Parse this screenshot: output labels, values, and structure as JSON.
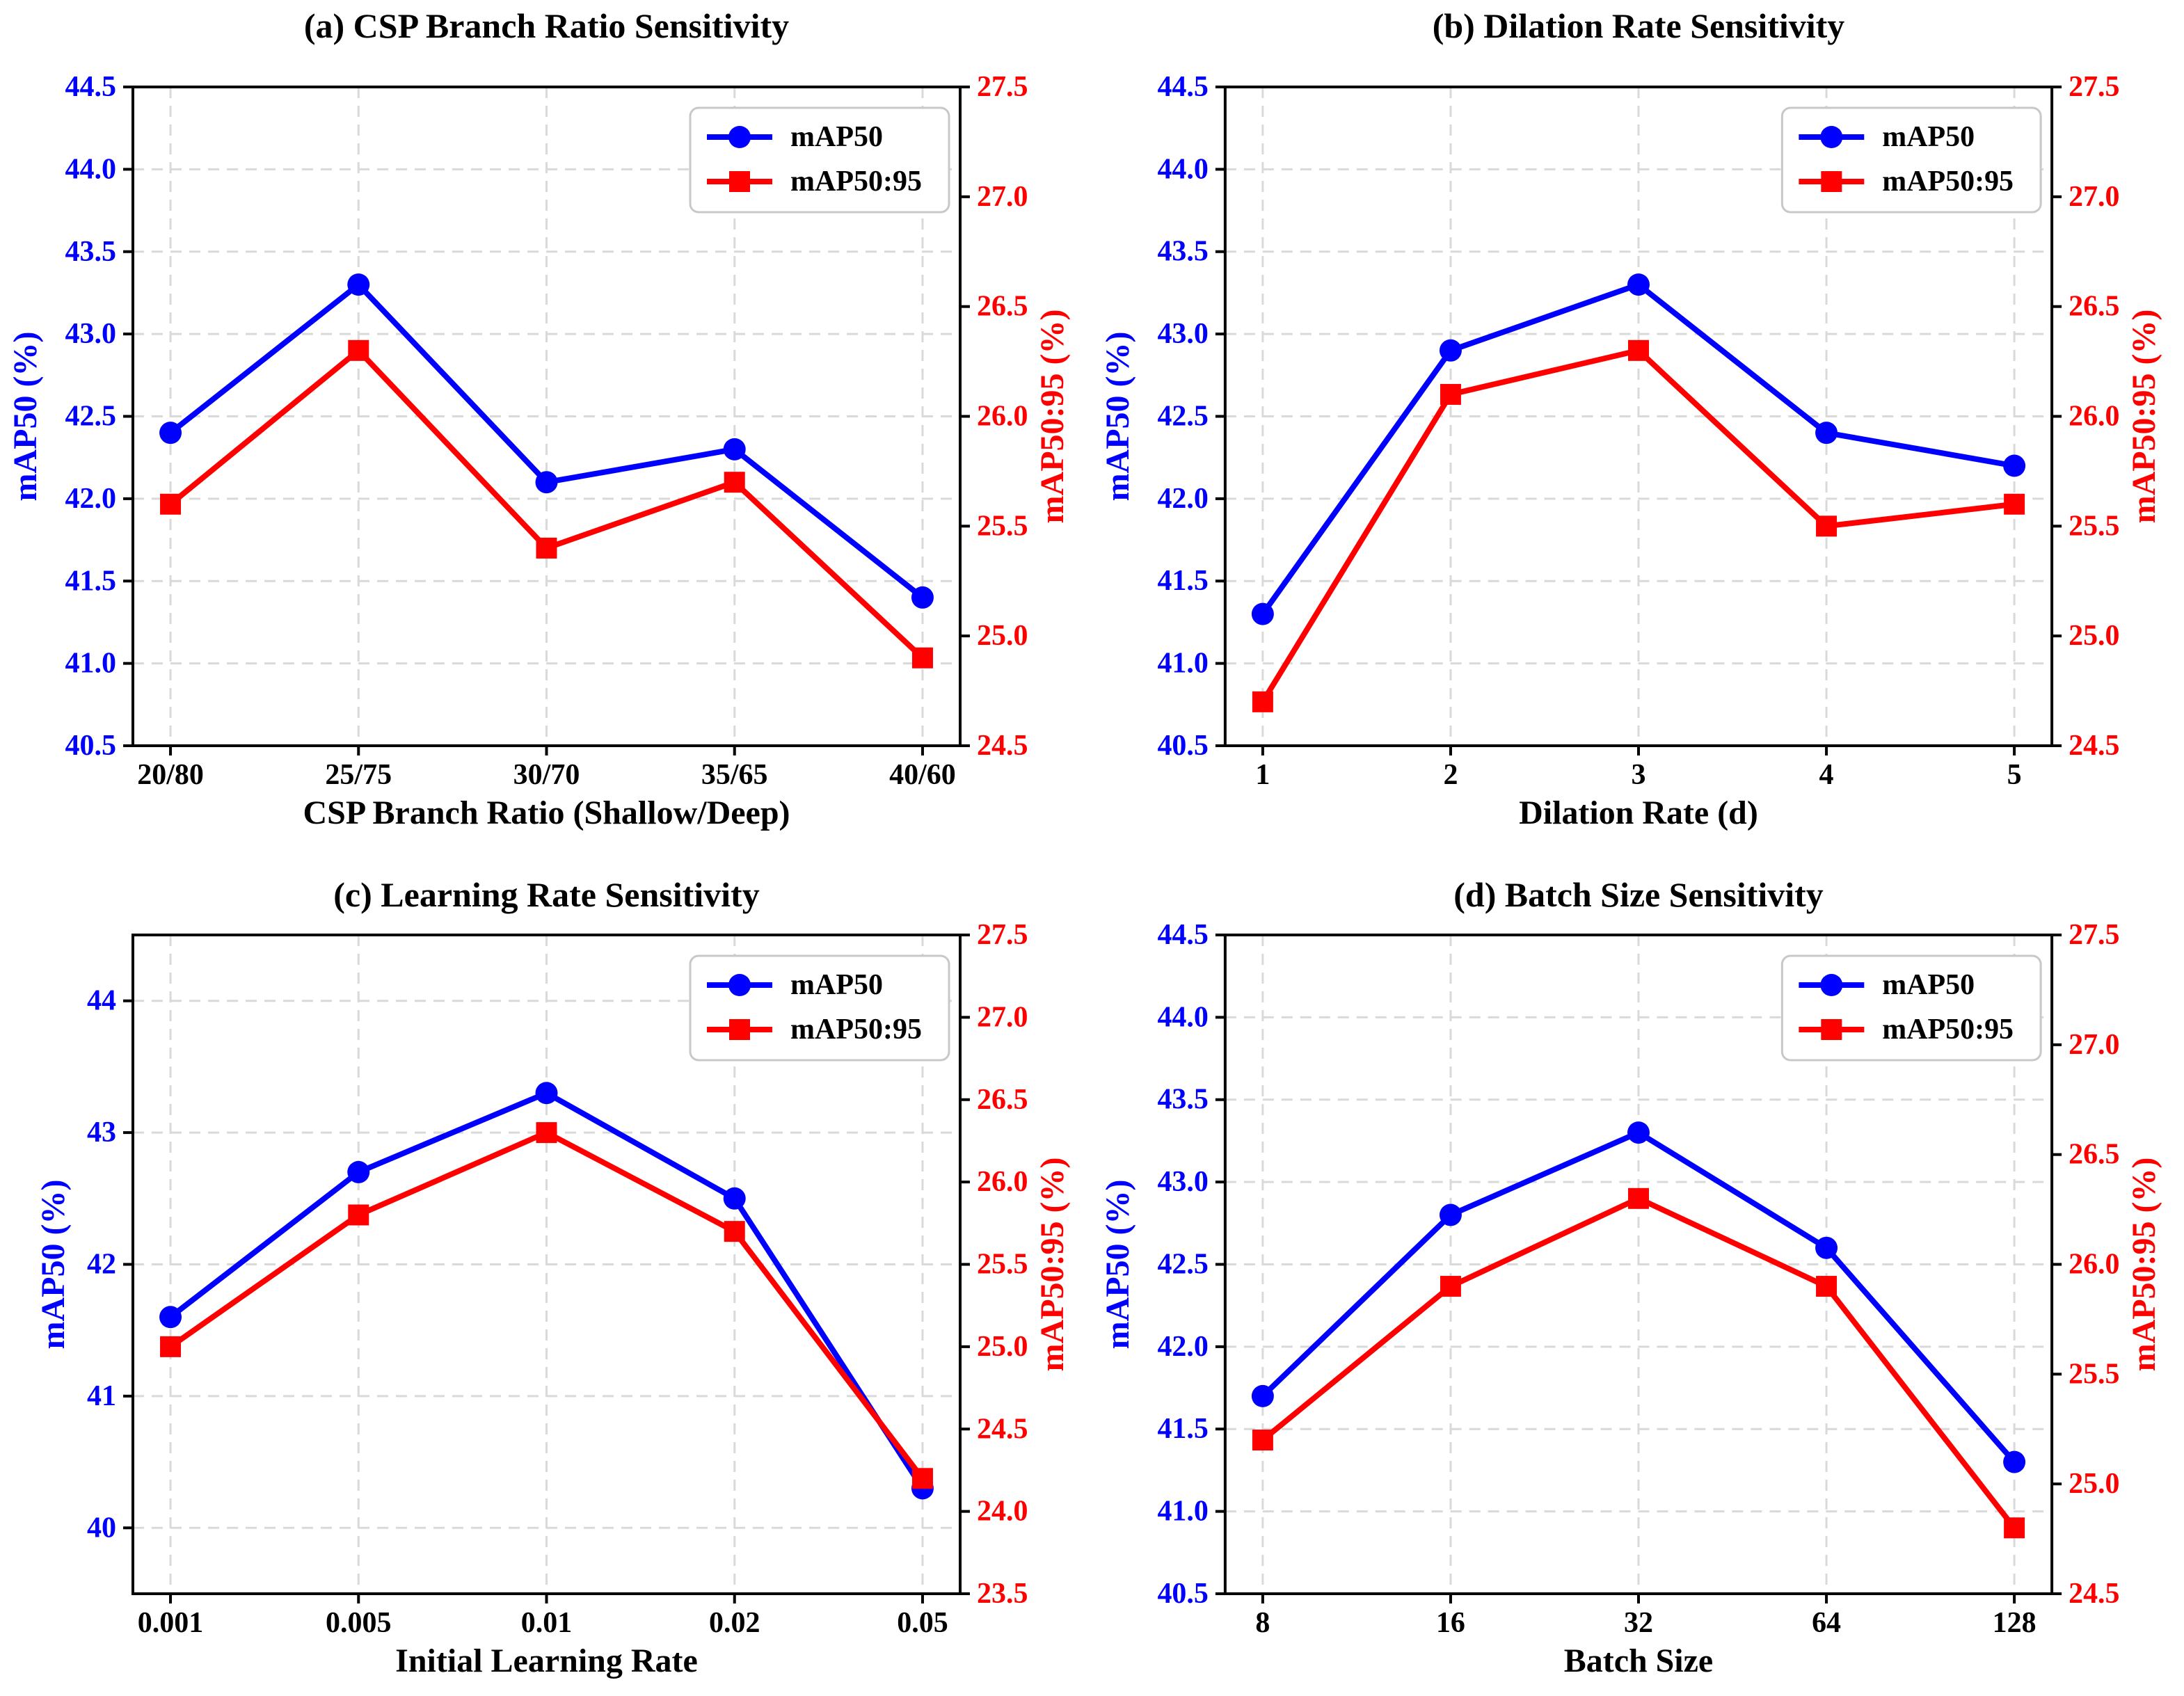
{
  "figure": {
    "background": "#ffffff",
    "grid_color": "#d9d9d9",
    "axis_color": "#000000",
    "legend_labels": [
      "mAP50",
      "mAP50:95"
    ],
    "series_colors": {
      "mAP50": "#0000ff",
      "mAP50:95": "#ff0000"
    }
  },
  "chart_data": [
    {
      "id": "a",
      "row": 0,
      "type": "line",
      "title": "(a) CSP Branch Ratio Sensitivity",
      "xlabel": "CSP Branch Ratio (Shallow/Deep)",
      "ylabel_left": "mAP50 (%)",
      "ylabel_right": "mAP50:95 (%)",
      "categories": [
        "20/80",
        "25/75",
        "30/70",
        "35/65",
        "40/60"
      ],
      "grid": true,
      "legend_position": "top-right",
      "left_axis": {
        "lim": [
          40.5,
          44.5
        ],
        "ticks": [
          40.5,
          41.0,
          41.5,
          42.0,
          42.5,
          43.0,
          43.5,
          44.0,
          44.5
        ],
        "labels": [
          "40.5",
          "41.0",
          "41.5",
          "42.0",
          "42.5",
          "43.0",
          "43.5",
          "44.0",
          "44.5"
        ]
      },
      "right_axis": {
        "lim": [
          24.5,
          27.5
        ],
        "ticks": [
          24.5,
          25.0,
          25.5,
          26.0,
          26.5,
          27.0,
          27.5
        ],
        "labels": [
          "24.5",
          "25.0",
          "25.5",
          "26.0",
          "26.5",
          "27.0",
          "27.5"
        ]
      },
      "series": [
        {
          "name": "mAP50",
          "axis": "left",
          "marker": "circle",
          "color": "#0000ff",
          "values": [
            42.4,
            43.3,
            42.1,
            42.3,
            41.4
          ]
        },
        {
          "name": "mAP50:95",
          "axis": "right",
          "marker": "square",
          "color": "#ff0000",
          "values": [
            25.6,
            26.3,
            25.4,
            25.7,
            24.9
          ]
        }
      ]
    },
    {
      "id": "b",
      "row": 0,
      "type": "line",
      "title": "(b) Dilation Rate Sensitivity",
      "xlabel": "Dilation Rate (d)",
      "ylabel_left": "mAP50 (%)",
      "ylabel_right": "mAP50:95 (%)",
      "categories": [
        "1",
        "2",
        "3",
        "4",
        "5"
      ],
      "grid": true,
      "legend_position": "top-right",
      "left_axis": {
        "lim": [
          40.5,
          44.5
        ],
        "ticks": [
          40.5,
          41.0,
          41.5,
          42.0,
          42.5,
          43.0,
          43.5,
          44.0,
          44.5
        ],
        "labels": [
          "40.5",
          "41.0",
          "41.5",
          "42.0",
          "42.5",
          "43.0",
          "43.5",
          "44.0",
          "44.5"
        ]
      },
      "right_axis": {
        "lim": [
          24.5,
          27.5
        ],
        "ticks": [
          24.5,
          25.0,
          25.5,
          26.0,
          26.5,
          27.0,
          27.5
        ],
        "labels": [
          "24.5",
          "25.0",
          "25.5",
          "26.0",
          "26.5",
          "27.0",
          "27.5"
        ]
      },
      "series": [
        {
          "name": "mAP50",
          "axis": "left",
          "marker": "circle",
          "color": "#0000ff",
          "values": [
            41.3,
            42.9,
            43.3,
            42.4,
            42.2
          ]
        },
        {
          "name": "mAP50:95",
          "axis": "right",
          "marker": "square",
          "color": "#ff0000",
          "values": [
            24.7,
            26.1,
            26.3,
            25.5,
            25.6
          ]
        }
      ]
    },
    {
      "id": "c",
      "row": 1,
      "type": "line",
      "title": "(c) Learning Rate Sensitivity",
      "xlabel": "Initial Learning Rate",
      "ylabel_left": "mAP50 (%)",
      "ylabel_right": "mAP50:95 (%)",
      "categories": [
        "0.001",
        "0.005",
        "0.01",
        "0.02",
        "0.05"
      ],
      "grid": true,
      "legend_position": "top-right",
      "left_axis": {
        "lim": [
          39.5,
          44.5
        ],
        "ticks": [
          40,
          41,
          42,
          43,
          44
        ],
        "labels": [
          "40",
          "41",
          "42",
          "43",
          "44"
        ]
      },
      "right_axis": {
        "lim": [
          23.5,
          27.5
        ],
        "ticks": [
          23.5,
          24.0,
          24.5,
          25.0,
          25.5,
          26.0,
          26.5,
          27.0,
          27.5
        ],
        "labels": [
          "23.5",
          "24.0",
          "24.5",
          "25.0",
          "25.5",
          "26.0",
          "26.5",
          "27.0",
          "27.5"
        ]
      },
      "series": [
        {
          "name": "mAP50",
          "axis": "left",
          "marker": "circle",
          "color": "#0000ff",
          "values": [
            41.6,
            42.7,
            43.3,
            42.5,
            40.3
          ]
        },
        {
          "name": "mAP50:95",
          "axis": "right",
          "marker": "square",
          "color": "#ff0000",
          "values": [
            25.0,
            25.8,
            26.3,
            25.7,
            24.2
          ]
        }
      ]
    },
    {
      "id": "d",
      "row": 1,
      "type": "line",
      "title": "(d) Batch Size Sensitivity",
      "xlabel": "Batch Size",
      "ylabel_left": "mAP50 (%)",
      "ylabel_right": "mAP50:95 (%)",
      "categories": [
        "8",
        "16",
        "32",
        "64",
        "128"
      ],
      "grid": true,
      "legend_position": "top-right",
      "left_axis": {
        "lim": [
          40.5,
          44.5
        ],
        "ticks": [
          40.5,
          41.0,
          41.5,
          42.0,
          42.5,
          43.0,
          43.5,
          44.0,
          44.5
        ],
        "labels": [
          "40.5",
          "41.0",
          "41.5",
          "42.0",
          "42.5",
          "43.0",
          "43.5",
          "44.0",
          "44.5"
        ]
      },
      "right_axis": {
        "lim": [
          24.5,
          27.5
        ],
        "ticks": [
          24.5,
          25.0,
          25.5,
          26.0,
          26.5,
          27.0,
          27.5
        ],
        "labels": [
          "24.5",
          "25.0",
          "25.5",
          "26.0",
          "26.5",
          "27.0",
          "27.5"
        ]
      },
      "series": [
        {
          "name": "mAP50",
          "axis": "left",
          "marker": "circle",
          "color": "#0000ff",
          "values": [
            41.7,
            42.8,
            43.3,
            42.6,
            41.3
          ]
        },
        {
          "name": "mAP50:95",
          "axis": "right",
          "marker": "square",
          "color": "#ff0000",
          "values": [
            25.2,
            25.9,
            26.3,
            25.9,
            24.8
          ]
        }
      ]
    }
  ]
}
